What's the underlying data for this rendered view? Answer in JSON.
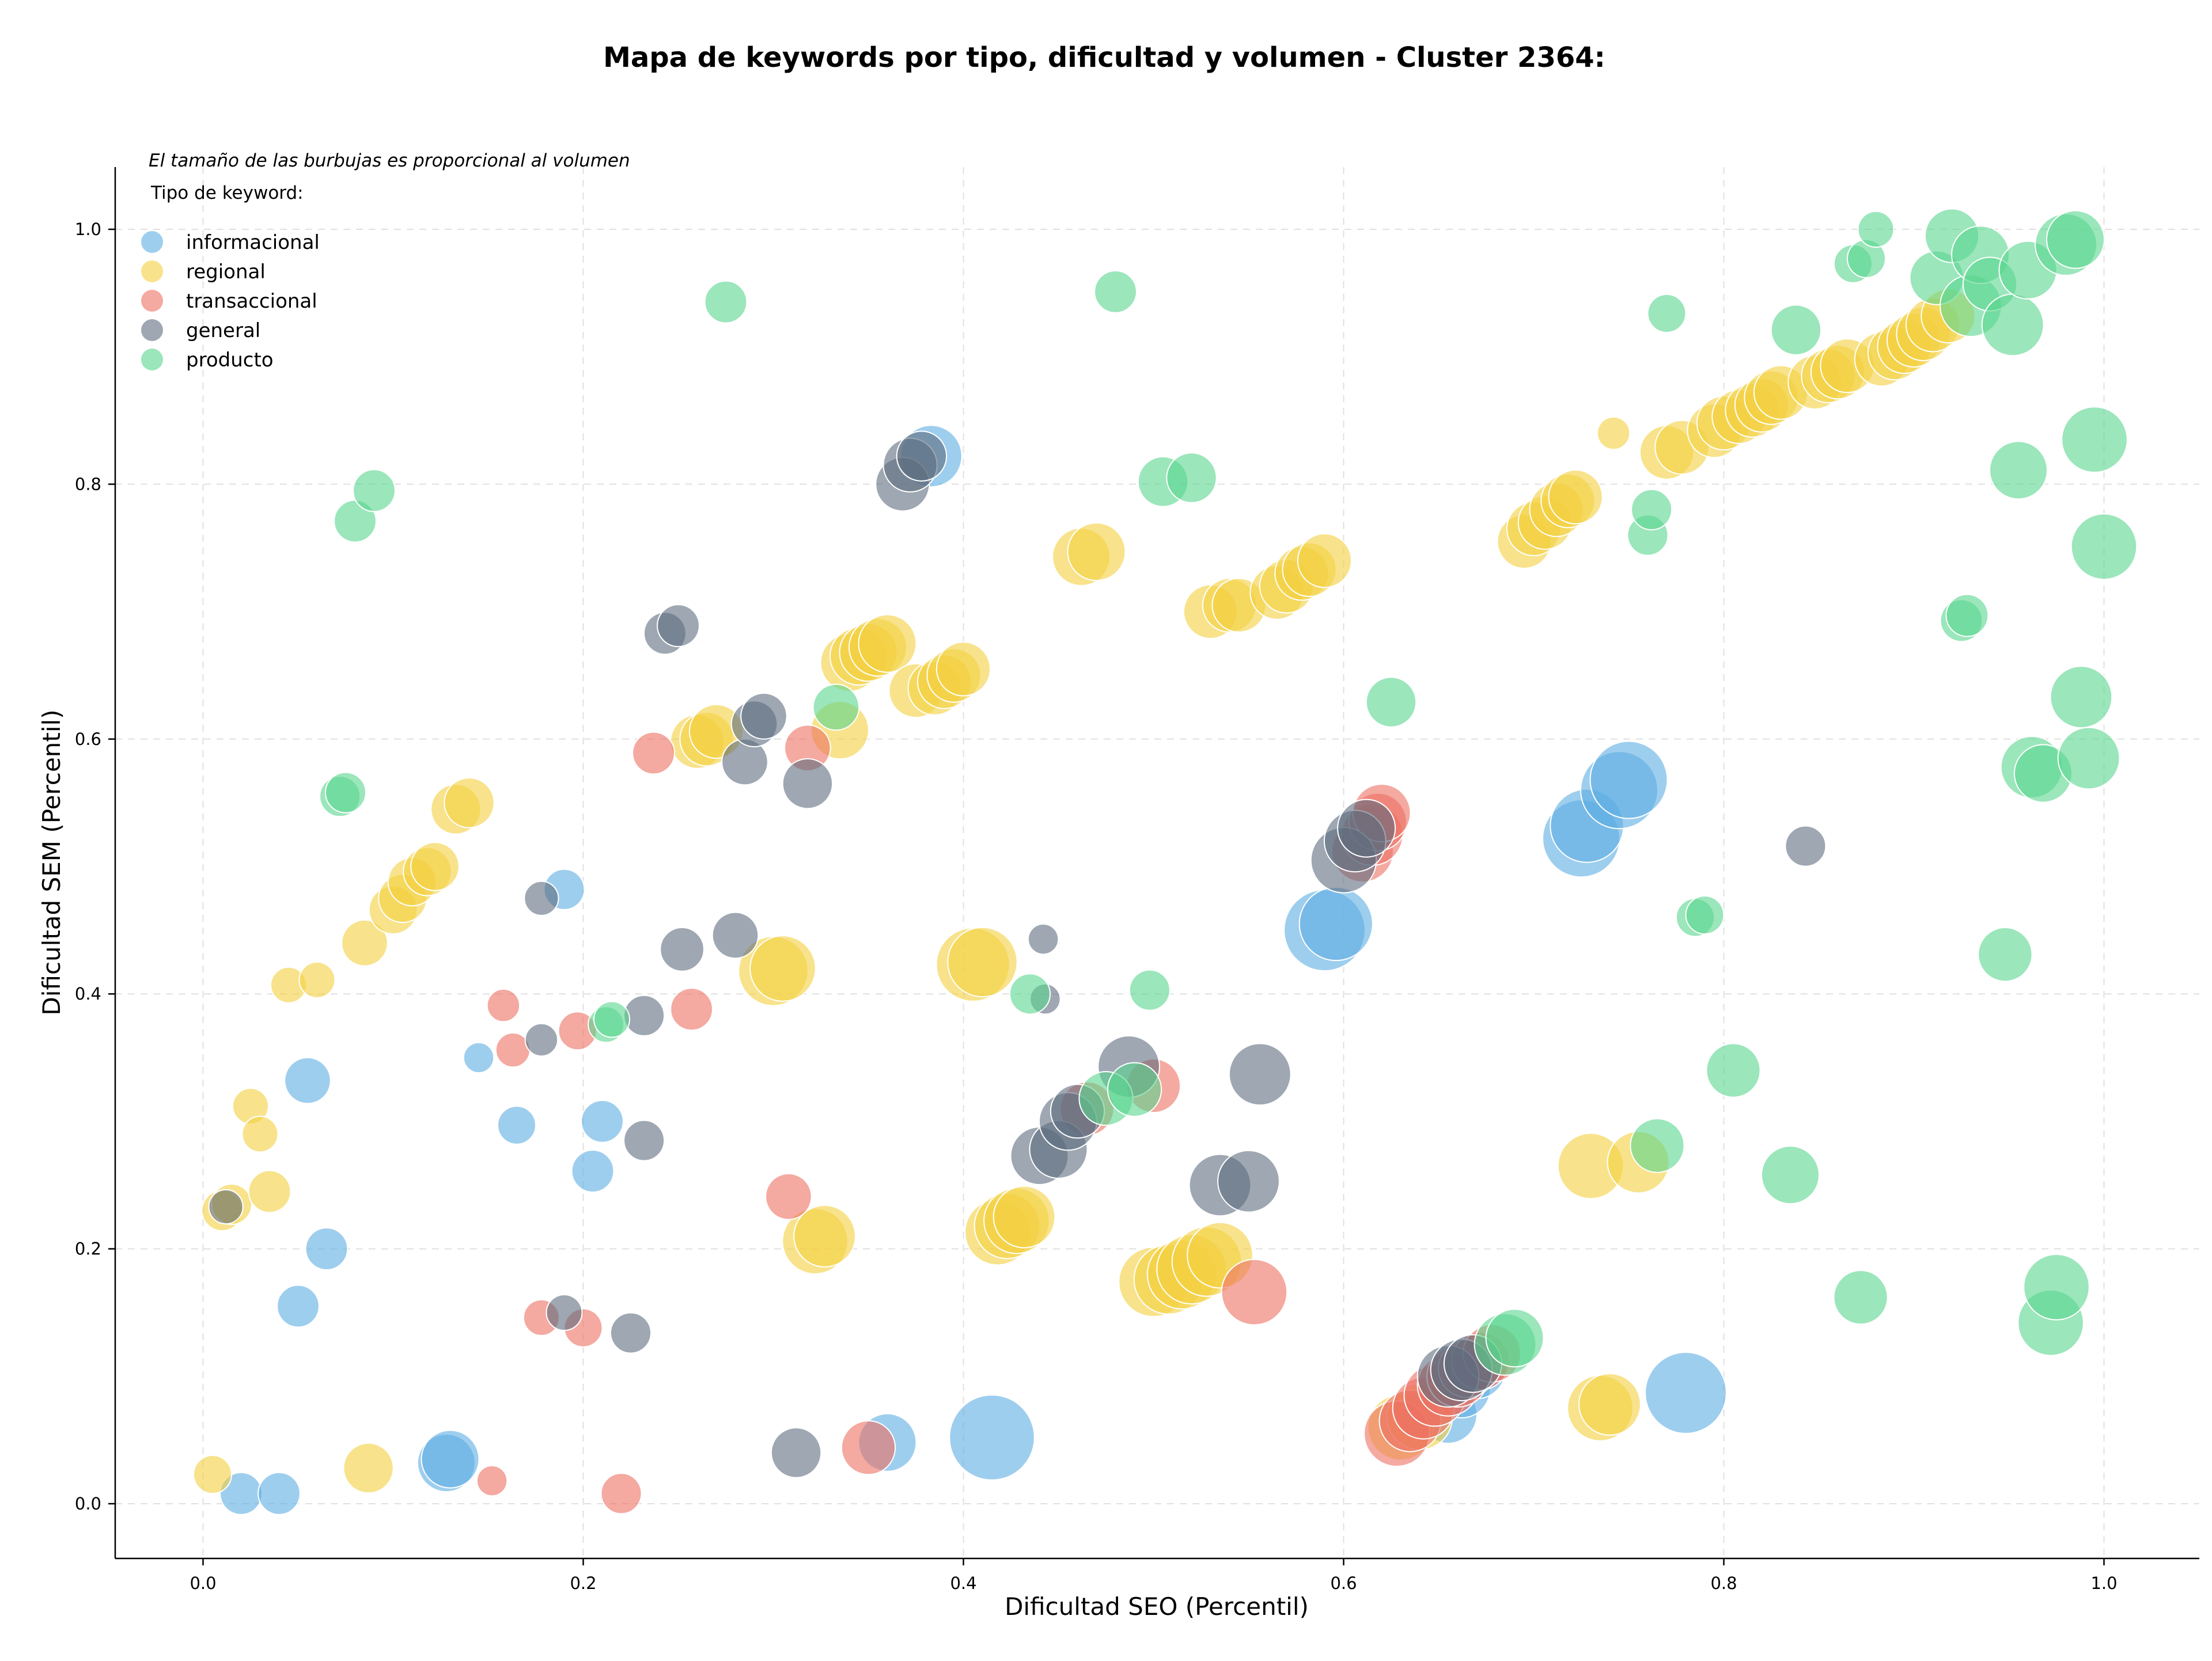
{
  "chart_data": {
    "type": "scatter",
    "title": "Mapa de keywords por tipo, dificultad y volumen - Cluster 2364:",
    "xlabel": "Dificultad SEO (Percentil)",
    "ylabel": "Dificultad SEM (Percentil)",
    "note": "El tamaño de las burbujas es proporcional al volumen",
    "legend_title": "Tipo de keyword:",
    "legend_position": "top-left",
    "xlim": [
      -0.045,
      1.05
    ],
    "ylim": [
      -0.04,
      1.05
    ],
    "xticks": [
      "0.0",
      "0.2",
      "0.4",
      "0.6",
      "0.8",
      "1.0"
    ],
    "yticks": [
      "0.0",
      "0.2",
      "0.4",
      "0.6",
      "0.8",
      "1.0"
    ],
    "grid": true,
    "series": [
      {
        "name": "informacional",
        "color": "#5dade2",
        "points": [
          [
            0.02,
            0.008,
            0.3
          ],
          [
            0.04,
            0.008,
            0.3
          ],
          [
            0.05,
            0.155,
            0.3
          ],
          [
            0.065,
            0.2,
            0.3
          ],
          [
            0.055,
            0.332,
            0.35
          ],
          [
            0.145,
            0.35,
            0.15
          ],
          [
            0.165,
            0.297,
            0.25
          ],
          [
            0.19,
            0.482,
            0.28
          ],
          [
            0.205,
            0.261,
            0.3
          ],
          [
            0.21,
            0.3,
            0.3
          ],
          [
            0.128,
            0.032,
            0.5
          ],
          [
            0.13,
            0.035,
            0.5
          ],
          [
            0.36,
            0.048,
            0.5
          ],
          [
            0.415,
            0.052,
            0.85
          ],
          [
            0.383,
            0.822,
            0.55
          ],
          [
            0.59,
            0.45,
            0.8
          ],
          [
            0.596,
            0.455,
            0.7
          ],
          [
            0.725,
            0.522,
            0.75
          ],
          [
            0.728,
            0.532,
            0.7
          ],
          [
            0.745,
            0.56,
            0.75
          ],
          [
            0.75,
            0.568,
            0.75
          ],
          [
            0.78,
            0.087,
            0.8
          ],
          [
            0.655,
            0.07,
            0.5
          ],
          [
            0.662,
            0.09,
            0.5
          ],
          [
            0.67,
            0.105,
            0.5
          ]
        ]
      },
      {
        "name": "regional",
        "color": "#f4d03f",
        "points": [
          [
            0.005,
            0.023,
            0.25
          ],
          [
            0.01,
            0.23,
            0.28
          ],
          [
            0.015,
            0.235,
            0.28
          ],
          [
            0.025,
            0.312,
            0.22
          ],
          [
            0.03,
            0.29,
            0.22
          ],
          [
            0.035,
            0.245,
            0.3
          ],
          [
            0.045,
            0.407,
            0.22
          ],
          [
            0.06,
            0.411,
            0.22
          ],
          [
            0.087,
            0.028,
            0.4
          ],
          [
            0.085,
            0.44,
            0.35
          ],
          [
            0.1,
            0.466,
            0.38
          ],
          [
            0.105,
            0.475,
            0.38
          ],
          [
            0.11,
            0.488,
            0.38
          ],
          [
            0.118,
            0.496,
            0.38
          ],
          [
            0.122,
            0.5,
            0.38
          ],
          [
            0.133,
            0.545,
            0.4
          ],
          [
            0.14,
            0.55,
            0.4
          ],
          [
            0.26,
            0.598,
            0.45
          ],
          [
            0.265,
            0.6,
            0.45
          ],
          [
            0.27,
            0.606,
            0.45
          ],
          [
            0.3,
            0.418,
            0.65
          ],
          [
            0.305,
            0.42,
            0.6
          ],
          [
            0.322,
            0.206,
            0.6
          ],
          [
            0.327,
            0.21,
            0.55
          ],
          [
            0.335,
            0.607,
            0.5
          ],
          [
            0.34,
            0.66,
            0.5
          ],
          [
            0.345,
            0.665,
            0.5
          ],
          [
            0.35,
            0.668,
            0.5
          ],
          [
            0.355,
            0.672,
            0.5
          ],
          [
            0.36,
            0.675,
            0.5
          ],
          [
            0.375,
            0.638,
            0.45
          ],
          [
            0.385,
            0.64,
            0.45
          ],
          [
            0.39,
            0.645,
            0.45
          ],
          [
            0.395,
            0.65,
            0.45
          ],
          [
            0.4,
            0.655,
            0.45
          ],
          [
            0.405,
            0.423,
            0.7
          ],
          [
            0.41,
            0.425,
            0.65
          ],
          [
            0.418,
            0.213,
            0.6
          ],
          [
            0.423,
            0.218,
            0.6
          ],
          [
            0.428,
            0.222,
            0.6
          ],
          [
            0.432,
            0.225,
            0.55
          ],
          [
            0.462,
            0.743,
            0.5
          ],
          [
            0.47,
            0.747,
            0.5
          ],
          [
            0.5,
            0.174,
            0.65
          ],
          [
            0.508,
            0.176,
            0.65
          ],
          [
            0.515,
            0.18,
            0.65
          ],
          [
            0.52,
            0.184,
            0.65
          ],
          [
            0.528,
            0.19,
            0.65
          ],
          [
            0.535,
            0.195,
            0.6
          ],
          [
            0.53,
            0.7,
            0.45
          ],
          [
            0.54,
            0.705,
            0.45
          ],
          [
            0.545,
            0.705,
            0.45
          ],
          [
            0.565,
            0.715,
            0.45
          ],
          [
            0.57,
            0.72,
            0.45
          ],
          [
            0.578,
            0.73,
            0.45
          ],
          [
            0.582,
            0.733,
            0.45
          ],
          [
            0.59,
            0.74,
            0.45
          ],
          [
            0.63,
            0.06,
            0.6
          ],
          [
            0.64,
            0.068,
            0.6
          ],
          [
            0.695,
            0.755,
            0.45
          ],
          [
            0.7,
            0.765,
            0.45
          ],
          [
            0.706,
            0.77,
            0.45
          ],
          [
            0.712,
            0.78,
            0.45
          ],
          [
            0.718,
            0.787,
            0.45
          ],
          [
            0.722,
            0.79,
            0.45
          ],
          [
            0.73,
            0.265,
            0.6
          ],
          [
            0.735,
            0.075,
            0.6
          ],
          [
            0.74,
            0.078,
            0.55
          ],
          [
            0.742,
            0.84,
            0.18
          ],
          [
            0.755,
            0.268,
            0.55
          ],
          [
            0.77,
            0.825,
            0.45
          ],
          [
            0.778,
            0.829,
            0.45
          ],
          [
            0.795,
            0.842,
            0.45
          ],
          [
            0.8,
            0.848,
            0.45
          ],
          [
            0.808,
            0.853,
            0.45
          ],
          [
            0.815,
            0.858,
            0.45
          ],
          [
            0.82,
            0.862,
            0.45
          ],
          [
            0.825,
            0.868,
            0.45
          ],
          [
            0.83,
            0.872,
            0.45
          ],
          [
            0.848,
            0.88,
            0.45
          ],
          [
            0.855,
            0.885,
            0.45
          ],
          [
            0.86,
            0.888,
            0.45
          ],
          [
            0.865,
            0.893,
            0.45
          ],
          [
            0.883,
            0.898,
            0.45
          ],
          [
            0.89,
            0.903,
            0.45
          ],
          [
            0.895,
            0.908,
            0.45
          ],
          [
            0.9,
            0.913,
            0.45
          ],
          [
            0.905,
            0.918,
            0.45
          ],
          [
            0.91,
            0.925,
            0.45
          ],
          [
            0.918,
            0.932,
            0.45
          ]
        ]
      },
      {
        "name": "transaccional",
        "color": "#ec7063",
        "points": [
          [
            0.152,
            0.018,
            0.15
          ],
          [
            0.158,
            0.391,
            0.18
          ],
          [
            0.163,
            0.356,
            0.2
          ],
          [
            0.178,
            0.146,
            0.22
          ],
          [
            0.197,
            0.371,
            0.25
          ],
          [
            0.2,
            0.138,
            0.25
          ],
          [
            0.22,
            0.008,
            0.28
          ],
          [
            0.237,
            0.589,
            0.3
          ],
          [
            0.257,
            0.388,
            0.3
          ],
          [
            0.308,
            0.241,
            0.35
          ],
          [
            0.318,
            0.593,
            0.35
          ],
          [
            0.35,
            0.044,
            0.45
          ],
          [
            0.465,
            0.31,
            0.45
          ],
          [
            0.5,
            0.328,
            0.45
          ],
          [
            0.553,
            0.166,
            0.6
          ],
          [
            0.61,
            0.512,
            0.55
          ],
          [
            0.615,
            0.525,
            0.55
          ],
          [
            0.618,
            0.535,
            0.5
          ],
          [
            0.62,
            0.542,
            0.5
          ],
          [
            0.628,
            0.055,
            0.6
          ],
          [
            0.635,
            0.065,
            0.55
          ],
          [
            0.642,
            0.075,
            0.55
          ],
          [
            0.648,
            0.085,
            0.55
          ],
          [
            0.655,
            0.093,
            0.55
          ],
          [
            0.66,
            0.1,
            0.55
          ],
          [
            0.665,
            0.106,
            0.5
          ],
          [
            0.672,
            0.112,
            0.5
          ],
          [
            0.678,
            0.118,
            0.5
          ]
        ]
      },
      {
        "name": "general",
        "color": "#5d6d7e",
        "points": [
          [
            0.012,
            0.233,
            0.2
          ],
          [
            0.178,
            0.364,
            0.18
          ],
          [
            0.178,
            0.475,
            0.2
          ],
          [
            0.19,
            0.15,
            0.22
          ],
          [
            0.225,
            0.134,
            0.28
          ],
          [
            0.232,
            0.285,
            0.28
          ],
          [
            0.232,
            0.383,
            0.28
          ],
          [
            0.243,
            0.683,
            0.3
          ],
          [
            0.25,
            0.689,
            0.3
          ],
          [
            0.252,
            0.435,
            0.32
          ],
          [
            0.28,
            0.446,
            0.35
          ],
          [
            0.285,
            0.582,
            0.35
          ],
          [
            0.29,
            0.612,
            0.35
          ],
          [
            0.295,
            0.618,
            0.35
          ],
          [
            0.312,
            0.04,
            0.4
          ],
          [
            0.318,
            0.565,
            0.4
          ],
          [
            0.368,
            0.8,
            0.45
          ],
          [
            0.372,
            0.815,
            0.45
          ],
          [
            0.378,
            0.822,
            0.4
          ],
          [
            0.442,
            0.443,
            0.15
          ],
          [
            0.443,
            0.396,
            0.15
          ],
          [
            0.44,
            0.273,
            0.5
          ],
          [
            0.45,
            0.278,
            0.5
          ],
          [
            0.455,
            0.3,
            0.5
          ],
          [
            0.46,
            0.308,
            0.45
          ],
          [
            0.487,
            0.343,
            0.55
          ],
          [
            0.535,
            0.25,
            0.55
          ],
          [
            0.55,
            0.253,
            0.55
          ],
          [
            0.556,
            0.337,
            0.55
          ],
          [
            0.6,
            0.505,
            0.6
          ],
          [
            0.606,
            0.52,
            0.55
          ],
          [
            0.612,
            0.53,
            0.5
          ],
          [
            0.655,
            0.1,
            0.55
          ],
          [
            0.662,
            0.105,
            0.55
          ],
          [
            0.668,
            0.11,
            0.5
          ],
          [
            0.843,
            0.516,
            0.28
          ]
        ]
      },
      {
        "name": "producto",
        "color": "#58d68d",
        "points": [
          [
            0.072,
            0.555,
            0.28
          ],
          [
            0.075,
            0.558,
            0.28
          ],
          [
            0.08,
            0.771,
            0.3
          ],
          [
            0.09,
            0.795,
            0.3
          ],
          [
            0.212,
            0.376,
            0.22
          ],
          [
            0.215,
            0.38,
            0.22
          ],
          [
            0.275,
            0.943,
            0.3
          ],
          [
            0.333,
            0.625,
            0.35
          ],
          [
            0.435,
            0.4,
            0.28
          ],
          [
            0.475,
            0.318,
            0.45
          ],
          [
            0.48,
            0.951,
            0.3
          ],
          [
            0.49,
            0.325,
            0.45
          ],
          [
            0.498,
            0.403,
            0.28
          ],
          [
            0.505,
            0.802,
            0.4
          ],
          [
            0.52,
            0.805,
            0.4
          ],
          [
            0.625,
            0.629,
            0.4
          ],
          [
            0.685,
            0.125,
            0.55
          ],
          [
            0.69,
            0.13,
            0.5
          ],
          [
            0.76,
            0.76,
            0.28
          ],
          [
            0.762,
            0.78,
            0.28
          ],
          [
            0.765,
            0.281,
            0.45
          ],
          [
            0.77,
            0.934,
            0.25
          ],
          [
            0.785,
            0.46,
            0.25
          ],
          [
            0.79,
            0.462,
            0.25
          ],
          [
            0.805,
            0.34,
            0.45
          ],
          [
            0.835,
            0.258,
            0.5
          ],
          [
            0.838,
            0.921,
            0.4
          ],
          [
            0.868,
            0.973,
            0.25
          ],
          [
            0.872,
            0.162,
            0.45
          ],
          [
            0.875,
            0.977,
            0.25
          ],
          [
            0.88,
            1.0,
            0.22
          ],
          [
            0.912,
            0.962,
            0.45
          ],
          [
            0.92,
            0.995,
            0.45
          ],
          [
            0.925,
            0.693,
            0.3
          ],
          [
            0.928,
            0.697,
            0.3
          ],
          [
            0.93,
            0.94,
            0.55
          ],
          [
            0.935,
            0.98,
            0.5
          ],
          [
            0.94,
            0.957,
            0.45
          ],
          [
            0.948,
            0.431,
            0.45
          ],
          [
            0.952,
            0.925,
            0.55
          ],
          [
            0.955,
            0.811,
            0.5
          ],
          [
            0.96,
            0.968,
            0.5
          ],
          [
            0.962,
            0.578,
            0.55
          ],
          [
            0.968,
            0.573,
            0.5
          ],
          [
            0.972,
            0.142,
            0.6
          ],
          [
            0.975,
            0.17,
            0.6
          ],
          [
            0.98,
            0.988,
            0.55
          ],
          [
            0.985,
            0.992,
            0.5
          ],
          [
            0.988,
            0.633,
            0.55
          ],
          [
            0.992,
            0.585,
            0.55
          ],
          [
            0.995,
            0.835,
            0.6
          ],
          [
            1.0,
            0.751,
            0.6
          ]
        ]
      }
    ]
  }
}
